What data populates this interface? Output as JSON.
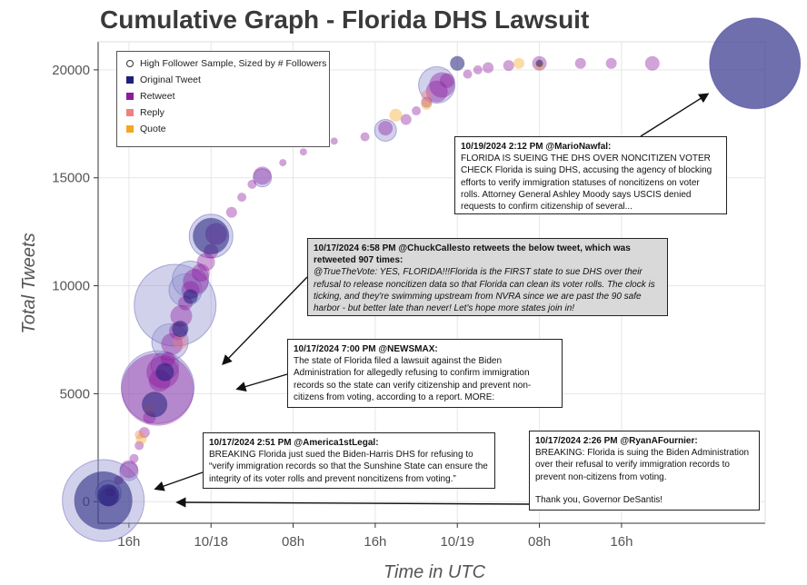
{
  "chart_data": {
    "type": "scatter",
    "title": "Cumulative Graph - Florida DHS Lawsuit",
    "xlabel": "Time in UTC",
    "ylabel": "Total Tweets",
    "x_ticks": [
      "16h",
      "10/18",
      "08h",
      "16h",
      "10/19",
      "08h",
      "16h"
    ],
    "y_ticks": [
      "0",
      "5000",
      "10000",
      "15000",
      "20000"
    ],
    "ylim": [
      -1000,
      21300
    ],
    "xlim_hours": [
      -3,
      62
    ],
    "x_unit": "hours from 10/17 16h UTC",
    "grid": true,
    "legend": {
      "position": "top-left",
      "entries": [
        {
          "label": "High Follower Sample, Sized by # Followers",
          "color": "#ffffff",
          "shape": "circle"
        },
        {
          "label": "Original Tweet",
          "color": "#1f1f7a",
          "shape": "square"
        },
        {
          "label": "Retweet",
          "color": "#8b1a9e",
          "shape": "square"
        },
        {
          "label": "Reply",
          "color": "#f08080",
          "shape": "square"
        },
        {
          "label": "Quote",
          "color": "#f5a623",
          "shape": "square"
        }
      ]
    },
    "series": [
      {
        "name": "Original Tweet",
        "color": "#1f1f7a",
        "points": [
          [
            -2.5,
            50,
            32
          ],
          [
            -2,
            300,
            12
          ],
          [
            2.5,
            4500,
            14
          ],
          [
            3.5,
            6000,
            10
          ],
          [
            5,
            8000,
            9
          ],
          [
            6,
            9500,
            8
          ],
          [
            8,
            12300,
            20
          ],
          [
            32,
            20300,
            8
          ],
          [
            40,
            20300,
            4
          ],
          [
            61,
            20300,
            50
          ]
        ]
      },
      {
        "name": "Retweet",
        "color": "#8b1a9e",
        "points": [
          [
            -2,
            200,
            10
          ],
          [
            -1.8,
            500,
            6
          ],
          [
            -1,
            1000,
            5
          ],
          [
            0,
            1500,
            10
          ],
          [
            0.5,
            2000,
            5
          ],
          [
            1,
            2600,
            5
          ],
          [
            1.5,
            3200,
            6
          ],
          [
            2,
            3900,
            7
          ],
          [
            2.8,
            5200,
            40
          ],
          [
            3,
            5600,
            12
          ],
          [
            3.3,
            6000,
            18
          ],
          [
            3.8,
            6600,
            8
          ],
          [
            4.2,
            7300,
            12
          ],
          [
            4.8,
            7900,
            10
          ],
          [
            5.1,
            8600,
            12
          ],
          [
            5.5,
            9200,
            8
          ],
          [
            6,
            9800,
            10
          ],
          [
            6.5,
            10200,
            14
          ],
          [
            7,
            10600,
            10
          ],
          [
            7.5,
            11100,
            10
          ],
          [
            8,
            11600,
            8
          ],
          [
            8.5,
            12400,
            12
          ],
          [
            10,
            13400,
            6
          ],
          [
            11,
            14100,
            5
          ],
          [
            12,
            14700,
            5
          ],
          [
            13,
            15100,
            10
          ],
          [
            15,
            15700,
            4
          ],
          [
            17,
            16200,
            4
          ],
          [
            20,
            16700,
            4
          ],
          [
            23,
            16900,
            5
          ],
          [
            25,
            17300,
            8
          ],
          [
            27,
            17700,
            6
          ],
          [
            28,
            18100,
            5
          ],
          [
            29,
            18500,
            6
          ],
          [
            30,
            19000,
            12
          ],
          [
            30.5,
            19300,
            14
          ],
          [
            31,
            19500,
            8
          ],
          [
            33,
            19800,
            5
          ],
          [
            34,
            20000,
            5
          ],
          [
            35,
            20100,
            6
          ],
          [
            37,
            20200,
            6
          ],
          [
            40,
            20300,
            8
          ],
          [
            44,
            20300,
            6
          ],
          [
            47,
            20300,
            6
          ],
          [
            51,
            20300,
            8
          ]
        ]
      },
      {
        "name": "Reply",
        "color": "#f08080",
        "points": [
          [
            1,
            3100,
            5
          ],
          [
            2,
            4300,
            6
          ],
          [
            5,
            7400,
            8
          ],
          [
            29,
            18800,
            6
          ]
        ]
      },
      {
        "name": "Quote",
        "color": "#f5a623",
        "points": [
          [
            1.2,
            2900,
            6
          ],
          [
            26,
            17900,
            7
          ],
          [
            29,
            18400,
            6
          ],
          [
            38,
            20300,
            6
          ],
          [
            40,
            20200,
            5
          ]
        ]
      },
      {
        "name": "High Follower Sample",
        "color": "#9a9ad4",
        "points": [
          [
            -2.5,
            50,
            45
          ],
          [
            -2,
            400,
            14
          ],
          [
            0,
            1400,
            10
          ],
          [
            2.8,
            5300,
            40
          ],
          [
            3.5,
            6300,
            15
          ],
          [
            4,
            7400,
            20
          ],
          [
            4.5,
            9100,
            45
          ],
          [
            5.5,
            9800,
            18
          ],
          [
            6,
            10300,
            20
          ],
          [
            8,
            12300,
            24
          ],
          [
            13,
            15000,
            10
          ],
          [
            25,
            17200,
            12
          ],
          [
            30,
            19300,
            20
          ],
          [
            61,
            20300,
            50
          ]
        ]
      }
    ]
  },
  "legend_labels": {
    "high": "High Follower Sample, Sized by # Followers",
    "orig": "Original Tweet",
    "rt": "Retweet",
    "reply": "Reply",
    "quote": "Quote"
  },
  "annotations": {
    "mario": {
      "header": "10/19/2024  2:12 PM @MarioNawfal:",
      "body": "FLORIDA IS SUEING THE DHS OVER NONCITIZEN VOTER CHECK Florida is suing DHS, accusing the agency of blocking efforts to verify immigration statuses of noncitizens on voter rolls. Attorney General Ashley Moody says USCIS denied requests to confirm citizenship of several..."
    },
    "chuck": {
      "header": "10/17/2024  6:58 PM @ChuckCallesto retweets the below tweet, which was retweeted 907 times:",
      "body": "@TrueTheVote: YES, FLORIDA!!!Florida is the FIRST state to sue DHS over their refusal to release noncitizen data so that Florida can clean its voter rolls. The clock is ticking, and they're swimming upstream from NVRA since we are past the 90 safe harbor - but better late than never! Let's hope more states join in!"
    },
    "newsmax": {
      "header": "10/17/2024  7:00 PM @NEWSMAX:",
      "body": "The state of Florida filed a lawsuit against the Biden Administration for allegedly refusing to confirm immigration records so the state can verify citizenship and prevent non-citizens from voting, according to a report. MORE:"
    },
    "america": {
      "header": "10/17/2024  2:51 PM @America1stLegal:",
      "body": "BREAKING Florida just sued the Biden-Harris DHS for refusing to “verify immigration records so that the Sunshine State can ensure the integrity of its voter rolls and prevent noncitizens from voting.”"
    },
    "ryan": {
      "header": "10/17/2024  2:26  PM @RyanAFournier:",
      "body": "BREAKING: Florida is suing the Biden Administration over their refusal to verify immigration records to prevent non-citizens from voting.",
      "footer": "Thank you, Governor DeSantis!"
    }
  }
}
